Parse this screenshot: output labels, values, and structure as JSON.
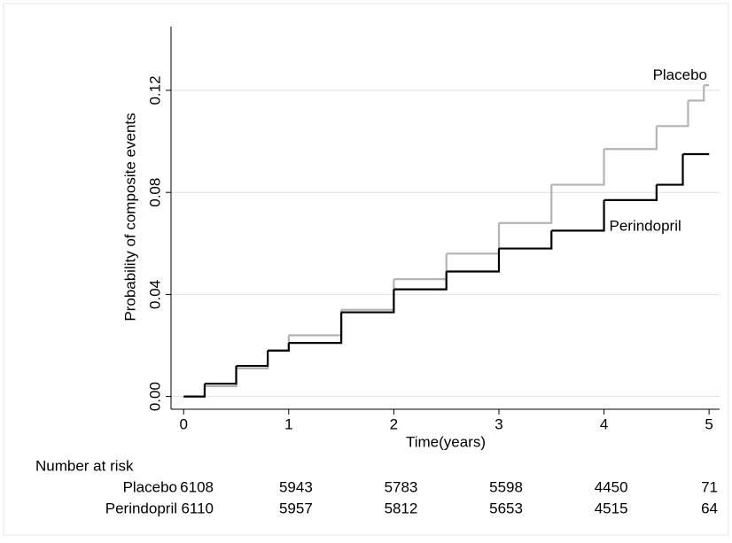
{
  "chart_data": {
    "type": "step",
    "xlabel": "Time(years)",
    "ylabel": "Probability of composite events",
    "xlim": [
      -0.12,
      5.1
    ],
    "xticks": [
      0,
      1,
      2,
      3,
      4,
      5
    ],
    "ylim": [
      -0.005,
      0.145
    ],
    "yticks": [
      {
        "value": 0,
        "label": "0.00"
      },
      {
        "value": 0.04,
        "label": "0.04"
      },
      {
        "value": 0.08,
        "label": "0.08"
      },
      {
        "value": 0.12,
        "label": "0.12"
      }
    ],
    "grid": true,
    "series": [
      {
        "name": "Placebo",
        "color": "#b3b3b3",
        "x": [
          0,
          0.2,
          0.5,
          0.8,
          1,
          1.5,
          2,
          2.5,
          3,
          3.5,
          4,
          4.5,
          4.8,
          4.95,
          5
        ],
        "values": [
          0,
          0.004,
          0.011,
          0.018,
          0.024,
          0.034,
          0.046,
          0.056,
          0.068,
          0.083,
          0.097,
          0.106,
          0.116,
          0.122,
          0.122
        ]
      },
      {
        "name": "Perindopril",
        "color": "#000000",
        "x": [
          0,
          0.2,
          0.5,
          0.8,
          1,
          1.5,
          2,
          2.5,
          3,
          3.5,
          4,
          4.5,
          4.75,
          5
        ],
        "values": [
          0,
          0.005,
          0.012,
          0.018,
          0.021,
          0.033,
          0.042,
          0.049,
          0.058,
          0.065,
          0.077,
          0.083,
          0.095,
          0.095
        ]
      }
    ],
    "risk_table": {
      "title": "Number at risk",
      "rows": [
        [
          6108,
          5943,
          5783,
          5598,
          4450,
          71
        ],
        [
          6110,
          5957,
          5812,
          5653,
          4515,
          64
        ]
      ]
    }
  }
}
